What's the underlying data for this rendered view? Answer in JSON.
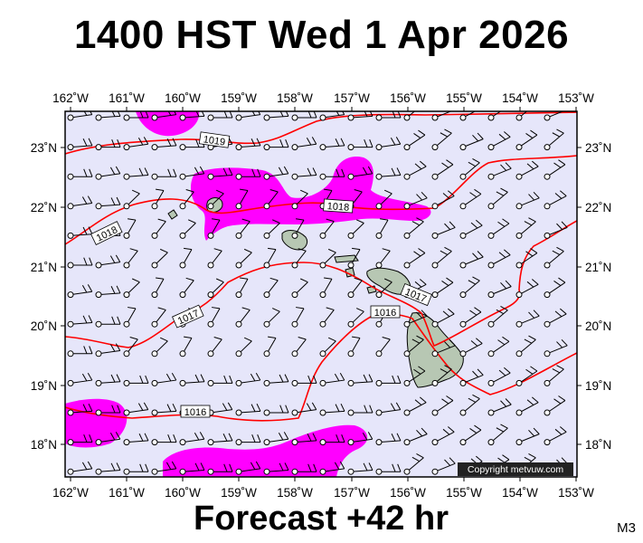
{
  "title": "1400 HST Wed 1 Apr 2026",
  "subtitle": "Forecast +42 hr",
  "model": "M3",
  "copyright": "Copyright metvuw.com",
  "colors": {
    "sea": "#e6e6fa",
    "high_wind": "#ff00ff",
    "isobar": "#ff0000",
    "land": "#b7c7b3",
    "frame": "#000000"
  },
  "map": {
    "lon_labels": [
      "162˚W",
      "161˚W",
      "160˚W",
      "159˚W",
      "158˚W",
      "157˚W",
      "156˚W",
      "155˚W",
      "154˚W",
      "153˚W"
    ],
    "lat_labels": [
      "23˚N",
      "22˚N",
      "21˚N",
      "20˚N",
      "19˚N",
      "18˚N"
    ],
    "isobar_labels": [
      "1019",
      "1018",
      "1018",
      "1017",
      "1017",
      "1016",
      "1016"
    ]
  }
}
